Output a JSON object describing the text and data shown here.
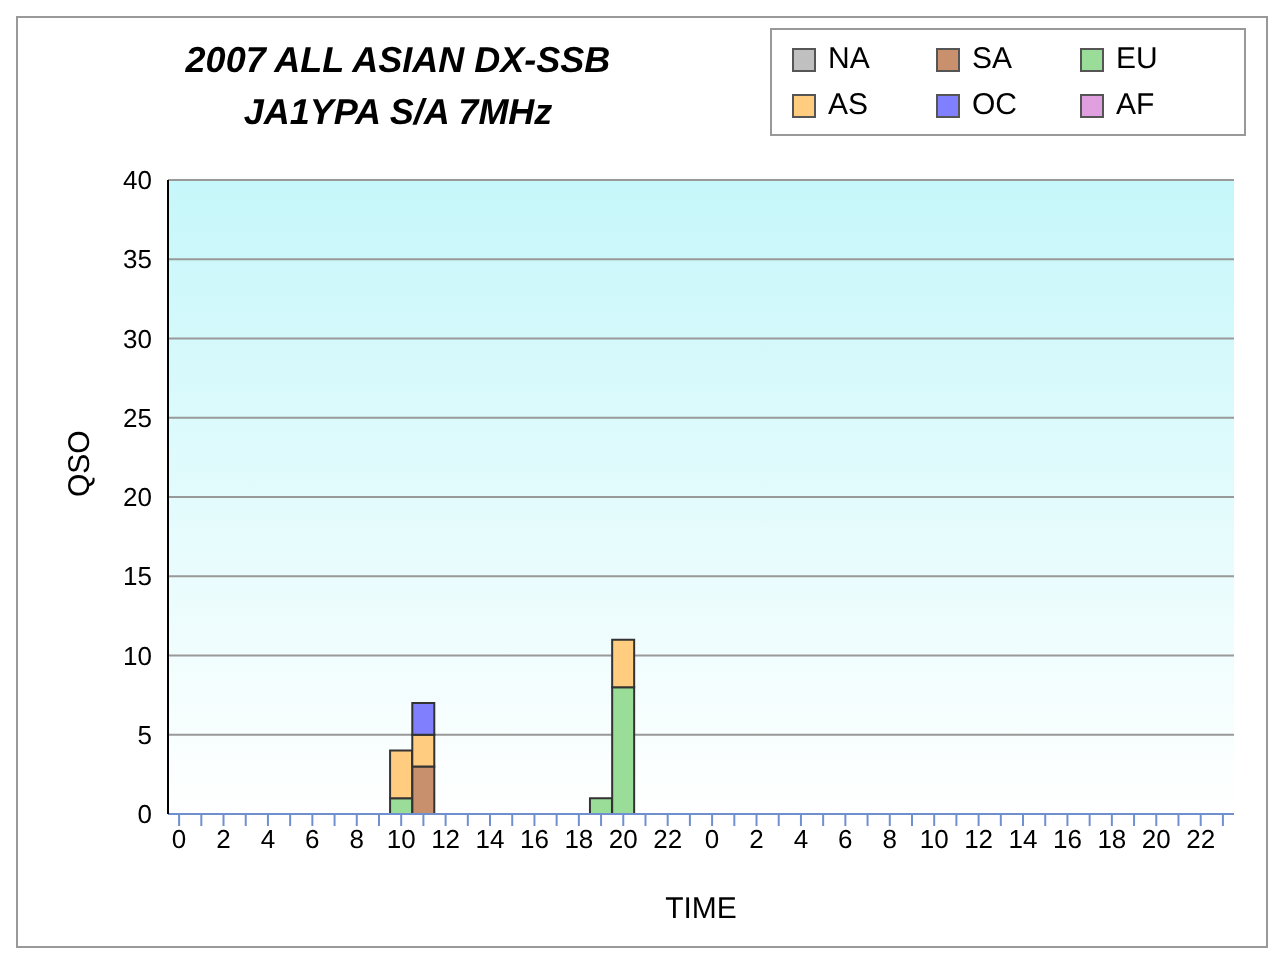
{
  "chart_data": {
    "type": "bar",
    "title": "2007 ALL ASIAN DX-SSB",
    "subtitle": "JA1YPA  S/A  7MHz",
    "xlabel": "TIME",
    "ylabel": "QSO",
    "categories": [
      "0",
      null,
      "2",
      null,
      "4",
      null,
      "6",
      null,
      "8",
      null,
      "10",
      null,
      "12",
      null,
      "14",
      null,
      "16",
      null,
      "18",
      null,
      "20",
      null,
      "22",
      null,
      "0",
      null,
      "2",
      null,
      "4",
      null,
      "6",
      null,
      "8",
      null,
      "10",
      null,
      "12",
      null,
      "14",
      null,
      "16",
      null,
      "18",
      null,
      "20",
      null,
      "22",
      null
    ],
    "stacked": true,
    "series": [
      {
        "name": "NA",
        "color": "#c0c0c0",
        "values": [
          0,
          0,
          0,
          0,
          0,
          0,
          0,
          0,
          0,
          0,
          0,
          0,
          0,
          0,
          0,
          0,
          0,
          0,
          0,
          0,
          0,
          0,
          0,
          0,
          0,
          0,
          0,
          0,
          0,
          0,
          0,
          0,
          0,
          0,
          0,
          0,
          0,
          0,
          0,
          0,
          0,
          0,
          0,
          0,
          0,
          0,
          0,
          0
        ]
      },
      {
        "name": "SA",
        "color": "#c8906c",
        "values": [
          0,
          0,
          0,
          0,
          0,
          0,
          0,
          0,
          0,
          0,
          0,
          3,
          0,
          0,
          0,
          0,
          0,
          0,
          0,
          0,
          0,
          0,
          0,
          0,
          0,
          0,
          0,
          0,
          0,
          0,
          0,
          0,
          0,
          0,
          0,
          0,
          0,
          0,
          0,
          0,
          0,
          0,
          0,
          0,
          0,
          0,
          0,
          0
        ]
      },
      {
        "name": "EU",
        "color": "#99dd99",
        "values": [
          0,
          0,
          0,
          0,
          0,
          0,
          0,
          0,
          0,
          0,
          1,
          0,
          0,
          0,
          0,
          0,
          0,
          0,
          0,
          1,
          8,
          0,
          0,
          0,
          0,
          0,
          0,
          0,
          0,
          0,
          0,
          0,
          0,
          0,
          0,
          0,
          0,
          0,
          0,
          0,
          0,
          0,
          0,
          0,
          0,
          0,
          0,
          0
        ]
      },
      {
        "name": "AS",
        "color": "#ffcc80",
        "values": [
          0,
          0,
          0,
          0,
          0,
          0,
          0,
          0,
          0,
          0,
          3,
          2,
          0,
          0,
          0,
          0,
          0,
          0,
          0,
          0,
          3,
          0,
          0,
          0,
          0,
          0,
          0,
          0,
          0,
          0,
          0,
          0,
          0,
          0,
          0,
          0,
          0,
          0,
          0,
          0,
          0,
          0,
          0,
          0,
          0,
          0,
          0,
          0
        ]
      },
      {
        "name": "OC",
        "color": "#8080ff",
        "values": [
          0,
          0,
          0,
          0,
          0,
          0,
          0,
          0,
          0,
          0,
          0,
          2,
          0,
          0,
          0,
          0,
          0,
          0,
          0,
          0,
          0,
          0,
          0,
          0,
          0,
          0,
          0,
          0,
          0,
          0,
          0,
          0,
          0,
          0,
          0,
          0,
          0,
          0,
          0,
          0,
          0,
          0,
          0,
          0,
          0,
          0,
          0,
          0
        ]
      },
      {
        "name": "AF",
        "color": "#e0a0e0",
        "values": [
          0,
          0,
          0,
          0,
          0,
          0,
          0,
          0,
          0,
          0,
          0,
          0,
          0,
          0,
          0,
          0,
          0,
          0,
          0,
          0,
          0,
          0,
          0,
          0,
          0,
          0,
          0,
          0,
          0,
          0,
          0,
          0,
          0,
          0,
          0,
          0,
          0,
          0,
          0,
          0,
          0,
          0,
          0,
          0,
          0,
          0,
          0,
          0
        ]
      }
    ],
    "ylim": [
      0,
      40
    ],
    "yticks": [
      0,
      5,
      10,
      15,
      20,
      25,
      30,
      35,
      40
    ],
    "grid": "y",
    "legend": "top right"
  }
}
